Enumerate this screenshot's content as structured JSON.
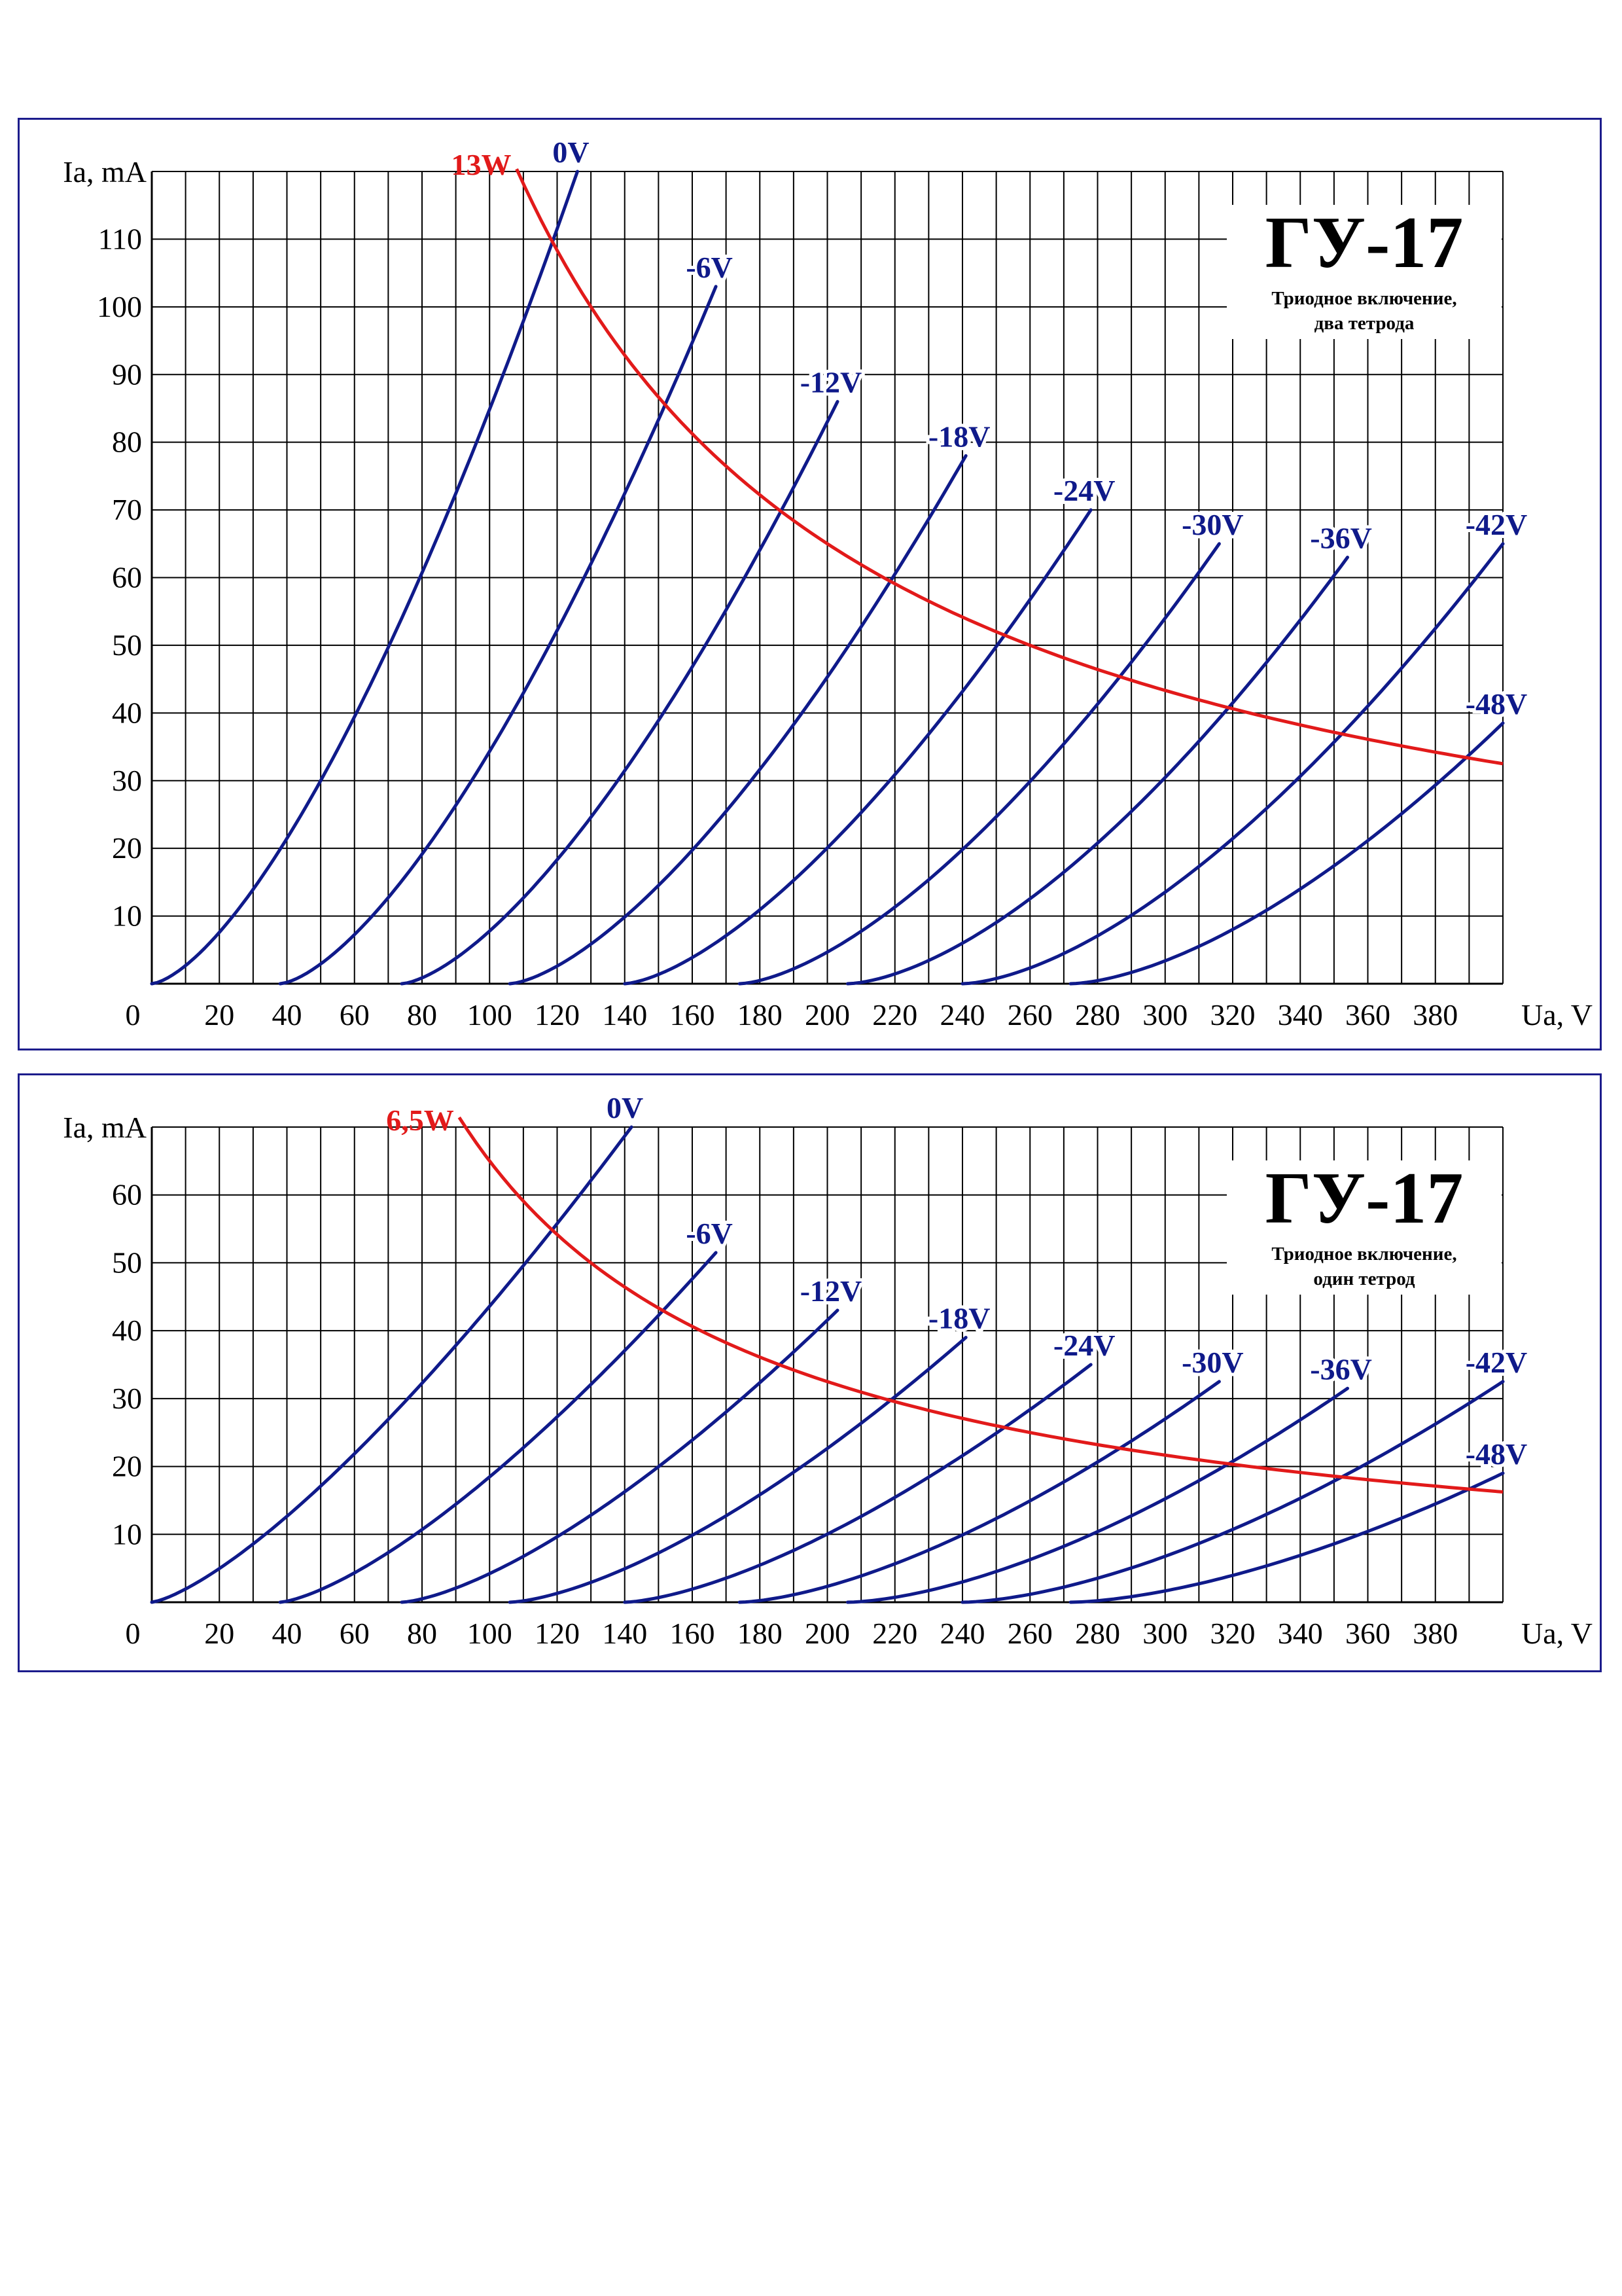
{
  "colors": {
    "curve": "#0f1a8a",
    "power": "#e21a1a",
    "frame": "#1c1c8c",
    "grid": "#000000"
  },
  "chart_data": [
    {
      "type": "line",
      "title": "ГУ-17",
      "subtitle_lines": [
        "Триодное включение,",
        "два тетрода"
      ],
      "xlabel": "Ua, V",
      "ylabel": "Ia, mA",
      "xlim": [
        0,
        400
      ],
      "ylim": [
        0,
        120
      ],
      "x_ticks": [
        0,
        20,
        40,
        60,
        80,
        100,
        120,
        140,
        160,
        180,
        200,
        220,
        240,
        260,
        280,
        300,
        320,
        340,
        360,
        380
      ],
      "y_ticks": [
        10,
        20,
        30,
        40,
        50,
        60,
        70,
        80,
        90,
        100,
        110
      ],
      "x_tick_labels": [
        "0",
        "20",
        "40",
        "60",
        "80",
        "100",
        "120",
        "140",
        "160",
        "180",
        "200",
        "220",
        "240",
        "260",
        "280",
        "300",
        "320",
        "340",
        "360",
        "380"
      ],
      "y_tick_labels": [
        "10",
        "20",
        "30",
        "40",
        "50",
        "60",
        "70",
        "80",
        "90",
        "100",
        "110"
      ],
      "grid": true,
      "power_curve": {
        "label": "13W",
        "watts": 13,
        "x_range": [
          108,
          400
        ]
      },
      "series": [
        {
          "name": "0V",
          "x0": 0,
          "x1": 126,
          "y1": 120,
          "k": 1.5
        },
        {
          "name": "-6V",
          "x0": 38,
          "x1": 167,
          "y1": 103,
          "k": 1.5
        },
        {
          "name": "-12V",
          "x0": 74,
          "x1": 203,
          "y1": 86,
          "k": 1.5
        },
        {
          "name": "-18V",
          "x0": 106,
          "x1": 241,
          "y1": 78,
          "k": 1.5
        },
        {
          "name": "-24V",
          "x0": 140,
          "x1": 278,
          "y1": 70,
          "k": 1.5
        },
        {
          "name": "-30V",
          "x0": 174,
          "x1": 316,
          "y1": 65,
          "k": 1.55
        },
        {
          "name": "-36V",
          "x0": 206,
          "x1": 354,
          "y1": 63,
          "k": 1.6
        },
        {
          "name": "-42V",
          "x0": 240,
          "x1": 400,
          "y1": 65,
          "k": 1.6
        },
        {
          "name": "-48V",
          "x0": 272,
          "x1": 400,
          "y1": 38.5,
          "k": 1.6
        }
      ]
    },
    {
      "type": "line",
      "title": "ГУ-17",
      "subtitle_lines": [
        "Триодное включение,",
        "один тетрод"
      ],
      "xlabel": "Ua, V",
      "ylabel": "Ia, mA",
      "xlim": [
        0,
        400
      ],
      "ylim": [
        0,
        70
      ],
      "x_ticks": [
        0,
        20,
        40,
        60,
        80,
        100,
        120,
        140,
        160,
        180,
        200,
        220,
        240,
        260,
        280,
        300,
        320,
        340,
        360,
        380
      ],
      "y_ticks": [
        10,
        20,
        30,
        40,
        50,
        60
      ],
      "x_tick_labels": [
        "0",
        "20",
        "40",
        "60",
        "80",
        "100",
        "120",
        "140",
        "160",
        "180",
        "200",
        "220",
        "240",
        "260",
        "280",
        "300",
        "320",
        "340",
        "360",
        "380"
      ],
      "y_tick_labels": [
        "10",
        "20",
        "30",
        "40",
        "50",
        "60"
      ],
      "grid": true,
      "power_curve": {
        "label": "6,5W",
        "watts": 6.5,
        "x_range": [
          91,
          400
        ]
      },
      "series": [
        {
          "name": "0V",
          "x0": 0,
          "x1": 142,
          "y1": 70,
          "k": 1.35
        },
        {
          "name": "-6V",
          "x0": 38,
          "x1": 167,
          "y1": 51.5,
          "k": 1.4
        },
        {
          "name": "-12V",
          "x0": 74,
          "x1": 203,
          "y1": 43,
          "k": 1.45
        },
        {
          "name": "-18V",
          "x0": 106,
          "x1": 241,
          "y1": 39,
          "k": 1.5
        },
        {
          "name": "-24V",
          "x0": 140,
          "x1": 278,
          "y1": 35,
          "k": 1.5
        },
        {
          "name": "-30V",
          "x0": 174,
          "x1": 316,
          "y1": 32.5,
          "k": 1.55
        },
        {
          "name": "-36V",
          "x0": 206,
          "x1": 354,
          "y1": 31.5,
          "k": 1.6
        },
        {
          "name": "-42V",
          "x0": 240,
          "x1": 400,
          "y1": 32.5,
          "k": 1.6
        },
        {
          "name": "-48V",
          "x0": 272,
          "x1": 400,
          "y1": 19,
          "k": 1.6
        }
      ]
    }
  ]
}
